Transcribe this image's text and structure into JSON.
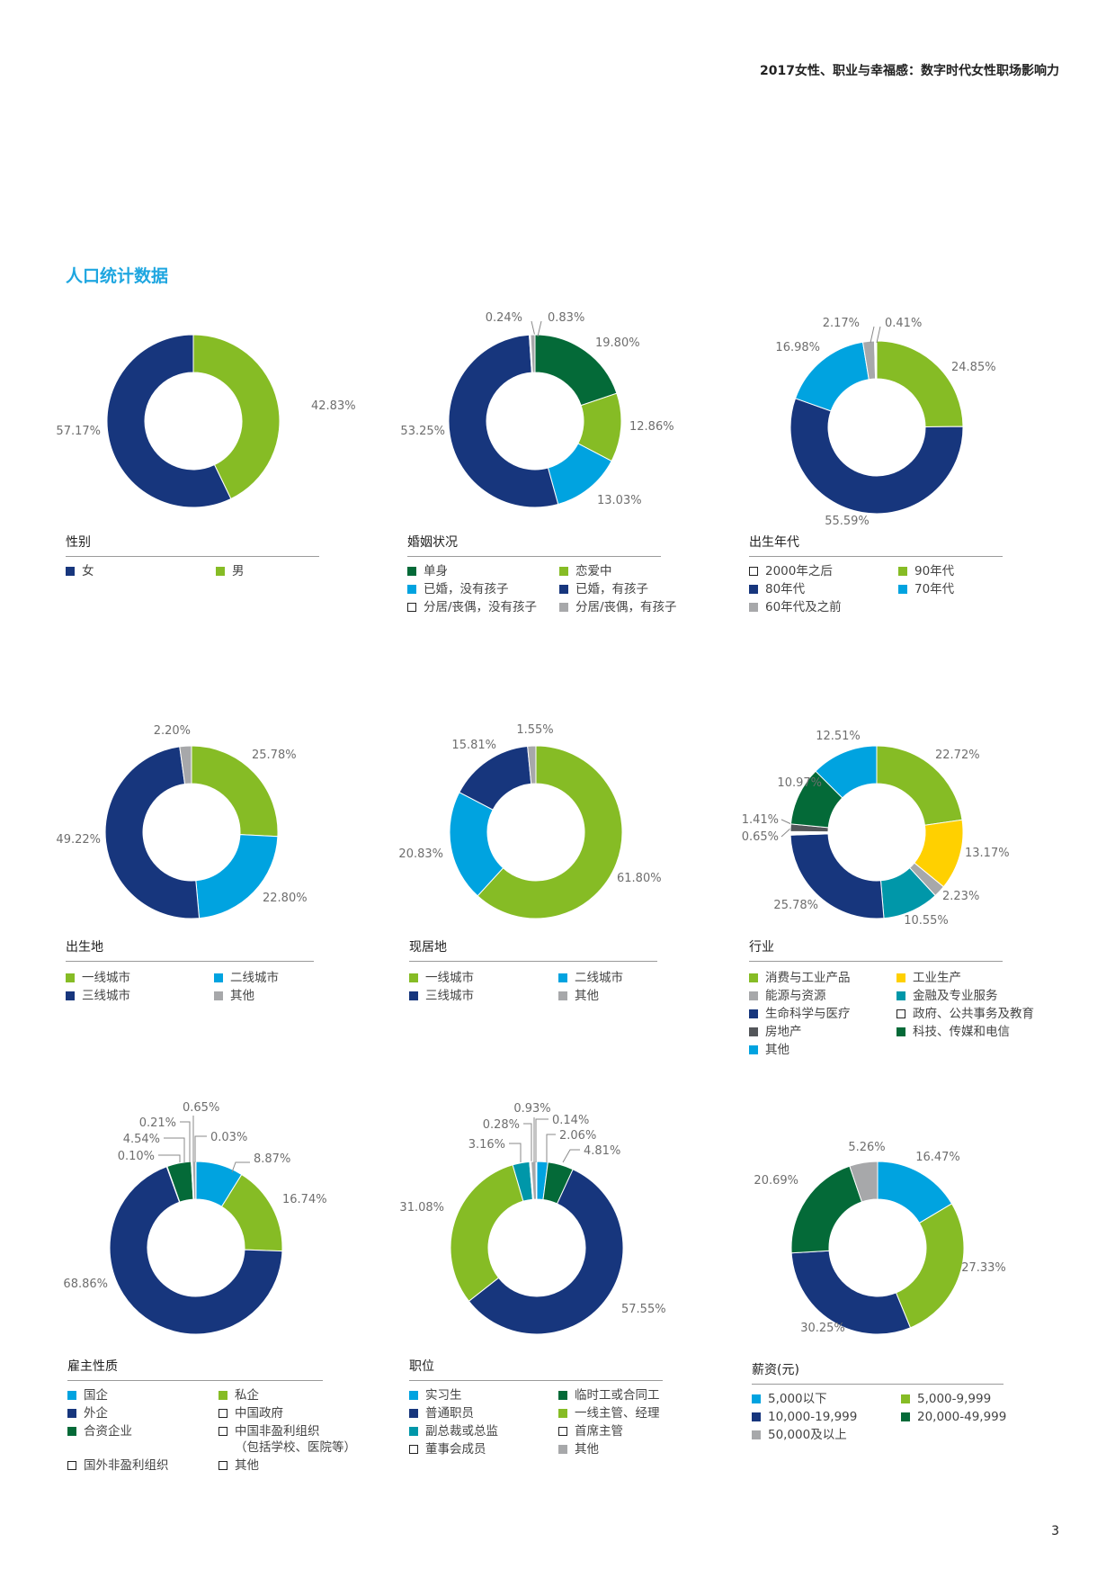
{
  "header": {
    "title": "2017女性、职业与幸福感：数字时代女性职场影响力"
  },
  "section_title": "人口统计数据",
  "page_number": "3",
  "colors": {
    "navy": "#17367d",
    "green": "#86bc25",
    "blue": "#00a3e0",
    "dark_green": "#046a38",
    "yellow": "#ffd000",
    "teal": "#0097a9",
    "gray": "#a7a8aa",
    "dark_gray": "#53565a",
    "white": "#ffffff"
  },
  "chart_data": [
    {
      "type": "pie",
      "title": "性别",
      "slices": [
        {
          "label": "男",
          "value": 42.83,
          "value_label": "42.83%",
          "color": "#86bc25"
        },
        {
          "label": "女",
          "value": 57.17,
          "value_label": "57.17%",
          "color": "#17367d"
        }
      ],
      "legend": [
        {
          "label": "女",
          "color": "#17367d"
        },
        {
          "label": "男",
          "color": "#86bc25"
        }
      ]
    },
    {
      "type": "pie",
      "title": "婚姻状况",
      "slices": [
        {
          "label": "单身",
          "value": 19.8,
          "value_label": "19.80%",
          "color": "#046a38"
        },
        {
          "label": "恋爱中",
          "value": 12.86,
          "value_label": "12.86%",
          "color": "#86bc25"
        },
        {
          "label": "已婚，没有孩子",
          "value": 13.03,
          "value_label": "13.03%",
          "color": "#00a3e0"
        },
        {
          "label": "已婚，有孩子",
          "value": 53.25,
          "value_label": "53.25%",
          "color": "#17367d"
        },
        {
          "label": "分居/丧偶，没有孩子",
          "value": 0.24,
          "value_label": "0.24%",
          "color": "#ffffff"
        },
        {
          "label": "分居/丧偶，有孩子",
          "value": 0.83,
          "value_label": "0.83%",
          "color": "#a7a8aa"
        }
      ],
      "legend": [
        {
          "label": "单身",
          "color": "#046a38"
        },
        {
          "label": "恋爱中",
          "color": "#86bc25"
        },
        {
          "label": "已婚，没有孩子",
          "color": "#00a3e0"
        },
        {
          "label": "已婚，有孩子",
          "color": "#17367d"
        },
        {
          "label": "分居/丧偶，没有孩子",
          "color": "#ffffff"
        },
        {
          "label": "分居/丧偶，有孩子",
          "color": "#a7a8aa"
        }
      ]
    },
    {
      "type": "pie",
      "title": "出生年代",
      "slices": [
        {
          "label": "90年代",
          "value": 24.85,
          "value_label": "24.85%",
          "color": "#86bc25"
        },
        {
          "label": "80年代",
          "value": 55.59,
          "value_label": "55.59%",
          "color": "#17367d"
        },
        {
          "label": "70年代",
          "value": 16.98,
          "value_label": "16.98%",
          "color": "#00a3e0"
        },
        {
          "label": "60年代及之前",
          "value": 2.17,
          "value_label": "2.17%",
          "color": "#a7a8aa"
        },
        {
          "label": "2000年之后",
          "value": 0.41,
          "value_label": "0.41%",
          "color": "#ffffff"
        }
      ],
      "legend": [
        {
          "label": "2000年之后",
          "color": "#ffffff"
        },
        {
          "label": "90年代",
          "color": "#86bc25"
        },
        {
          "label": "80年代",
          "color": "#17367d"
        },
        {
          "label": "70年代",
          "color": "#00a3e0"
        },
        {
          "label": "60年代及之前",
          "color": "#a7a8aa"
        }
      ]
    },
    {
      "type": "pie",
      "title": "出生地",
      "slices": [
        {
          "label": "一线城市",
          "value": 25.78,
          "value_label": "25.78%",
          "color": "#86bc25"
        },
        {
          "label": "二线城市",
          "value": 22.8,
          "value_label": "22.80%",
          "color": "#00a3e0"
        },
        {
          "label": "三线城市",
          "value": 49.22,
          "value_label": "49.22%",
          "color": "#17367d"
        },
        {
          "label": "其他",
          "value": 2.2,
          "value_label": "2.20%",
          "color": "#a7a8aa"
        }
      ],
      "legend": [
        {
          "label": "一线城市",
          "color": "#86bc25"
        },
        {
          "label": "二线城市",
          "color": "#00a3e0"
        },
        {
          "label": "三线城市",
          "color": "#17367d"
        },
        {
          "label": "其他",
          "color": "#a7a8aa"
        }
      ]
    },
    {
      "type": "pie",
      "title": "现居地",
      "slices": [
        {
          "label": "一线城市",
          "value": 61.8,
          "value_label": "61.80%",
          "color": "#86bc25"
        },
        {
          "label": "二线城市",
          "value": 20.83,
          "value_label": "20.83%",
          "color": "#00a3e0"
        },
        {
          "label": "三线城市",
          "value": 15.81,
          "value_label": "15.81%",
          "color": "#17367d"
        },
        {
          "label": "其他",
          "value": 1.55,
          "value_label": "1.55%",
          "color": "#a7a8aa"
        }
      ],
      "legend": [
        {
          "label": "一线城市",
          "color": "#86bc25"
        },
        {
          "label": "二线城市",
          "color": "#00a3e0"
        },
        {
          "label": "三线城市",
          "color": "#17367d"
        },
        {
          "label": "其他",
          "color": "#a7a8aa"
        }
      ]
    },
    {
      "type": "pie",
      "title": "行业",
      "slices": [
        {
          "label": "消费与工业产品",
          "value": 22.72,
          "value_label": "22.72%",
          "color": "#86bc25"
        },
        {
          "label": "工业生产",
          "value": 13.17,
          "value_label": "13.17%",
          "color": "#ffd000"
        },
        {
          "label": "能源与资源",
          "value": 2.23,
          "value_label": "2.23%",
          "color": "#a7a8aa"
        },
        {
          "label": "金融及专业服务",
          "value": 10.55,
          "value_label": "10.55%",
          "color": "#0097a9"
        },
        {
          "label": "生命科学与医疗",
          "value": 25.78,
          "value_label": "25.78%",
          "color": "#17367d"
        },
        {
          "label": "政府、公共事务及教育",
          "value": 0.65,
          "value_label": "0.65%",
          "color": "#ffffff"
        },
        {
          "label": "房地产",
          "value": 1.41,
          "value_label": "1.41%",
          "color": "#53565a"
        },
        {
          "label": "科技、传媒和电信",
          "value": 10.97,
          "value_label": "10.97%",
          "color": "#046a38"
        },
        {
          "label": "其他",
          "value": 12.51,
          "value_label": "12.51%",
          "color": "#00a3e0"
        }
      ],
      "legend": [
        {
          "label": "消费与工业产品",
          "color": "#86bc25"
        },
        {
          "label": "工业生产",
          "color": "#ffd000"
        },
        {
          "label": "能源与资源",
          "color": "#a7a8aa"
        },
        {
          "label": "金融及专业服务",
          "color": "#0097a9"
        },
        {
          "label": "生命科学与医疗",
          "color": "#17367d"
        },
        {
          "label": "政府、公共事务及教育",
          "color": "#ffffff"
        },
        {
          "label": "房地产",
          "color": "#53565a"
        },
        {
          "label": "科技、传媒和电信",
          "color": "#046a38"
        },
        {
          "label": "其他",
          "color": "#00a3e0"
        }
      ]
    },
    {
      "type": "pie",
      "title": "雇主性质",
      "slices": [
        {
          "label": "国企",
          "value": 8.87,
          "value_label": "8.87%",
          "color": "#00a3e0"
        },
        {
          "label": "私企",
          "value": 16.74,
          "value_label": "16.74%",
          "color": "#86bc25"
        },
        {
          "label": "外企",
          "value": 68.86,
          "value_label": "68.86%",
          "color": "#17367d"
        },
        {
          "label": "国外非盈利组织",
          "value": 0.1,
          "value_label": "0.10%",
          "color": "#ffffff"
        },
        {
          "label": "合资企业",
          "value": 4.54,
          "value_label": "4.54%",
          "color": "#046a38"
        },
        {
          "label": "中国非盈利组织（包括学校、医院等）",
          "value": 0.21,
          "value_label": "0.21%",
          "color": "#ffffff"
        },
        {
          "label": "其他",
          "value": 0.65,
          "value_label": "0.65%",
          "color": "#a7a8aa"
        },
        {
          "label": "中国政府",
          "value": 0.03,
          "value_label": "0.03%",
          "color": "#ffffff"
        }
      ],
      "legend": [
        {
          "label": "国企",
          "color": "#00a3e0"
        },
        {
          "label": "私企",
          "color": "#86bc25"
        },
        {
          "label": "外企",
          "color": "#17367d"
        },
        {
          "label": "中国政府",
          "color": "#ffffff"
        },
        {
          "label": "合资企业",
          "color": "#046a38"
        },
        {
          "label": "中国非盈利组织",
          "label2": "（包括学校、医院等）",
          "color": "#ffffff"
        },
        {
          "label": "国外非盈利组织",
          "color": "#ffffff"
        },
        {
          "label": "其他",
          "color": "#ffffff"
        }
      ]
    },
    {
      "type": "pie",
      "title": "职位",
      "slices": [
        {
          "label": "实习生",
          "value": 2.06,
          "value_label": "2.06%",
          "color": "#00a3e0"
        },
        {
          "label": "临时工或合同工",
          "value": 4.81,
          "value_label": "4.81%",
          "color": "#046a38"
        },
        {
          "label": "普通职员",
          "value": 57.55,
          "value_label": "57.55%",
          "color": "#17367d"
        },
        {
          "label": "一线主管、经理",
          "value": 31.08,
          "value_label": "31.08%",
          "color": "#86bc25"
        },
        {
          "label": "副总裁或总监",
          "value": 3.16,
          "value_label": "3.16%",
          "color": "#0097a9"
        },
        {
          "label": "首席主管",
          "value": 0.28,
          "value_label": "0.28%",
          "color": "#ffffff"
        },
        {
          "label": "其他",
          "value": 0.93,
          "value_label": "0.93%",
          "color": "#a7a8aa"
        },
        {
          "label": "董事会成员",
          "value": 0.14,
          "value_label": "0.14%",
          "color": "#ffffff"
        }
      ],
      "legend": [
        {
          "label": "实习生",
          "color": "#00a3e0"
        },
        {
          "label": "临时工或合同工",
          "color": "#046a38"
        },
        {
          "label": "普通职员",
          "color": "#17367d"
        },
        {
          "label": "一线主管、经理",
          "color": "#86bc25"
        },
        {
          "label": "副总裁或总监",
          "color": "#0097a9"
        },
        {
          "label": "首席主管",
          "color": "#ffffff"
        },
        {
          "label": "董事会成员",
          "color": "#ffffff"
        },
        {
          "label": "其他",
          "color": "#a7a8aa"
        }
      ]
    },
    {
      "type": "pie",
      "title": "薪资(元)",
      "slices": [
        {
          "label": "5,000以下",
          "value": 16.47,
          "value_label": "16.47%",
          "color": "#00a3e0"
        },
        {
          "label": "5,000-9,999",
          "value": 27.33,
          "value_label": "27.33%",
          "color": "#86bc25"
        },
        {
          "label": "10,000-19,999",
          "value": 30.25,
          "value_label": "30.25%",
          "color": "#17367d"
        },
        {
          "label": "20,000-49,999",
          "value": 20.69,
          "value_label": "20.69%",
          "color": "#046a38"
        },
        {
          "label": "50,000及以上",
          "value": 5.26,
          "value_label": "5.26%",
          "color": "#a7a8aa"
        }
      ],
      "legend": [
        {
          "label": "5,000以下",
          "color": "#00a3e0"
        },
        {
          "label": "5,000-9,999",
          "color": "#86bc25"
        },
        {
          "label": "10,000-19,999",
          "color": "#17367d"
        },
        {
          "label": "20,000-49,999",
          "color": "#046a38"
        },
        {
          "label": "50,000及以上",
          "color": "#a7a8aa"
        }
      ]
    }
  ]
}
